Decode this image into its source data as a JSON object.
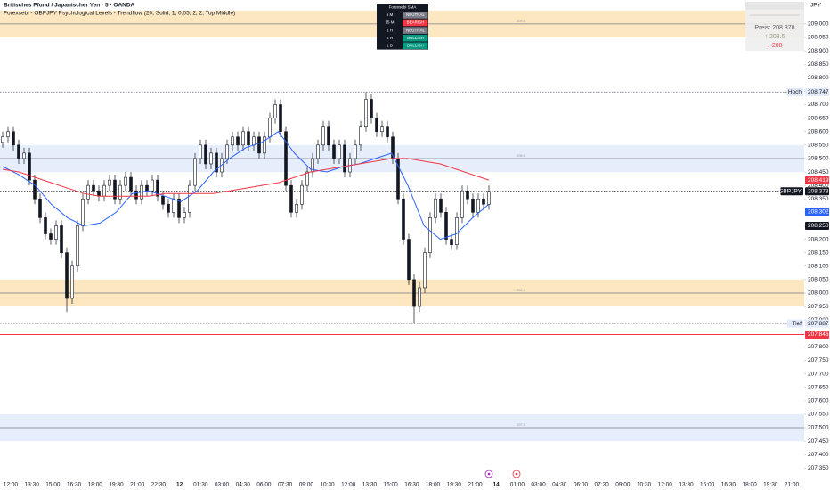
{
  "chart_data": {
    "type": "candlestick",
    "title": "Britisches Pfund / Japanischer Yen · 5 · OANDA",
    "subtitle": "Forexsebi - GBPJPY Psychological Levels - Trendflow (20, Solid, 1, 0.05, 2, 2, Top Middle)",
    "currency": "JPY",
    "ylim": [
      207.318,
      209.089
    ],
    "yticks": [
      {
        "value": 209.0,
        "label": "209,000"
      },
      {
        "value": 208.95,
        "label": "208,950"
      },
      {
        "value": 208.9,
        "label": "208,900"
      },
      {
        "value": 208.85,
        "label": "208,850"
      },
      {
        "value": 208.8,
        "label": "208,800"
      },
      {
        "value": 208.75,
        "label": "208,750"
      },
      {
        "value": 208.7,
        "label": "208,700"
      },
      {
        "value": 208.65,
        "label": "208,650"
      },
      {
        "value": 208.6,
        "label": "208,600"
      },
      {
        "value": 208.55,
        "label": "208,550"
      },
      {
        "value": 208.5,
        "label": "208,500"
      },
      {
        "value": 208.45,
        "label": "208,450"
      },
      {
        "value": 208.4,
        "label": "208,400"
      },
      {
        "value": 208.35,
        "label": "208,350"
      },
      {
        "value": 208.3,
        "label": "208,300"
      },
      {
        "value": 208.25,
        "label": "208,250"
      },
      {
        "value": 208.2,
        "label": "208,200"
      },
      {
        "value": 208.15,
        "label": "208,150"
      },
      {
        "value": 208.1,
        "label": "208,100"
      },
      {
        "value": 208.05,
        "label": "208,050"
      },
      {
        "value": 208.0,
        "label": "208,000"
      },
      {
        "value": 207.95,
        "label": "207,950"
      },
      {
        "value": 207.9,
        "label": "207,900"
      },
      {
        "value": 207.85,
        "label": "207,850"
      },
      {
        "value": 207.8,
        "label": "207,800"
      },
      {
        "value": 207.75,
        "label": "207,750"
      },
      {
        "value": 207.7,
        "label": "207,700"
      },
      {
        "value": 207.65,
        "label": "207,650"
      },
      {
        "value": 207.6,
        "label": "207,600"
      },
      {
        "value": 207.55,
        "label": "207,550"
      },
      {
        "value": 207.5,
        "label": "207,500"
      },
      {
        "value": 207.45,
        "label": "207,450"
      },
      {
        "value": 207.4,
        "label": "207,400"
      },
      {
        "value": 207.35,
        "label": "207,350"
      }
    ],
    "x_labels": [
      "12:00",
      "13:30",
      "15:00",
      "16:30",
      "18:00",
      "19:30",
      "21:00",
      "22:30",
      "12",
      "01:30",
      "03:00",
      "04:30",
      "06:00",
      "07:30",
      "09:00",
      "10:30",
      "12:00",
      "13:30",
      "15:00",
      "16:30",
      "18:00",
      "19:30",
      "21:00",
      "14",
      "01:00",
      "03:00",
      "04:30",
      "06:00",
      "07:30",
      "09:00",
      "10:30",
      "12:00",
      "13:30",
      "15:00",
      "16:30",
      "18:00",
      "19:30",
      "21:00"
    ],
    "day_labels": [
      "12",
      "14"
    ],
    "up_color": "#131722",
    "down_color": "#131722",
    "open": [
      208.56,
      208.58,
      208.6,
      208.55,
      208.5,
      208.52,
      208.42,
      208.35,
      208.28,
      208.22,
      208.2,
      208.25,
      208.15,
      207.98,
      208.1,
      208.25,
      208.35,
      208.4,
      208.38,
      208.36,
      208.4,
      208.42,
      208.35,
      208.4,
      208.43,
      208.38,
      208.35,
      208.4,
      208.38,
      208.42,
      208.36,
      208.33,
      208.3,
      208.35,
      208.28,
      208.3,
      208.4,
      208.5,
      208.55,
      208.48,
      208.52,
      208.45,
      208.5,
      208.55,
      208.58,
      208.55,
      208.6,
      208.55,
      208.58,
      208.52,
      208.58,
      208.65,
      208.7,
      208.6,
      208.4,
      208.3,
      208.33,
      208.4,
      208.45,
      208.5,
      208.55,
      208.62,
      208.55,
      208.5,
      208.55,
      208.45,
      208.5,
      208.55,
      208.62,
      208.72,
      208.65,
      208.6,
      208.62,
      208.58,
      208.5,
      208.35,
      208.2,
      208.05,
      207.95,
      208.02,
      208.15,
      208.28,
      208.35,
      208.3,
      208.2,
      208.18,
      208.28,
      208.38,
      208.35,
      208.3,
      208.35,
      208.33
    ],
    "high": [
      208.6,
      208.62,
      208.62,
      208.57,
      208.54,
      208.54,
      208.44,
      208.37,
      208.3,
      208.24,
      208.27,
      208.27,
      208.17,
      208.12,
      208.27,
      208.37,
      208.42,
      208.42,
      208.4,
      208.42,
      208.44,
      208.44,
      208.42,
      208.45,
      208.45,
      208.4,
      208.42,
      208.42,
      208.44,
      208.44,
      208.38,
      208.35,
      208.37,
      208.37,
      208.32,
      208.42,
      208.52,
      208.57,
      208.57,
      208.54,
      208.54,
      208.52,
      208.57,
      208.6,
      208.6,
      208.62,
      208.62,
      208.6,
      208.6,
      208.6,
      208.67,
      208.72,
      208.72,
      208.62,
      208.42,
      208.35,
      208.42,
      208.47,
      208.52,
      208.57,
      208.64,
      208.64,
      208.57,
      208.57,
      208.57,
      208.52,
      208.57,
      208.64,
      208.747,
      208.74,
      208.67,
      208.64,
      208.64,
      208.6,
      208.52,
      208.37,
      208.22,
      208.07,
      208.04,
      208.17,
      208.3,
      208.37,
      208.37,
      208.32,
      208.22,
      208.3,
      208.4,
      208.4,
      208.37,
      208.37,
      208.37,
      208.4
    ],
    "low": [
      208.54,
      208.56,
      208.53,
      208.48,
      208.48,
      208.4,
      208.33,
      208.26,
      208.2,
      208.18,
      208.18,
      208.13,
      207.93,
      207.96,
      208.08,
      208.23,
      208.33,
      208.36,
      208.34,
      208.34,
      208.38,
      208.33,
      208.33,
      208.38,
      208.36,
      208.33,
      208.33,
      208.36,
      208.36,
      208.34,
      208.31,
      208.28,
      208.28,
      208.26,
      208.26,
      208.28,
      208.38,
      208.48,
      208.46,
      208.46,
      208.43,
      208.43,
      208.48,
      208.53,
      208.53,
      208.53,
      208.53,
      208.53,
      208.5,
      208.5,
      208.56,
      208.63,
      208.58,
      208.38,
      208.28,
      208.28,
      208.31,
      208.38,
      208.43,
      208.48,
      208.53,
      208.53,
      208.48,
      208.48,
      208.43,
      208.43,
      208.48,
      208.53,
      208.6,
      208.63,
      208.58,
      208.58,
      208.56,
      208.48,
      208.33,
      208.18,
      208.03,
      207.887,
      207.93,
      208.0,
      208.13,
      208.26,
      208.28,
      208.18,
      208.16,
      208.16,
      208.26,
      208.33,
      208.28,
      208.28,
      208.31,
      208.31
    ],
    "close": [
      208.58,
      208.6,
      208.55,
      208.5,
      208.52,
      208.42,
      208.35,
      208.28,
      208.22,
      208.2,
      208.25,
      208.15,
      207.98,
      208.1,
      208.25,
      208.35,
      208.4,
      208.38,
      208.36,
      208.4,
      208.42,
      208.35,
      208.4,
      208.43,
      208.38,
      208.35,
      208.4,
      208.38,
      208.42,
      208.36,
      208.33,
      208.3,
      208.35,
      208.28,
      208.3,
      208.4,
      208.5,
      208.55,
      208.48,
      208.52,
      208.45,
      208.5,
      208.55,
      208.58,
      208.55,
      208.6,
      208.55,
      208.58,
      208.52,
      208.58,
      208.65,
      208.7,
      208.6,
      208.4,
      208.3,
      208.33,
      208.4,
      208.45,
      208.5,
      208.55,
      208.62,
      208.55,
      208.5,
      208.55,
      208.45,
      208.5,
      208.55,
      208.62,
      208.72,
      208.65,
      208.6,
      208.62,
      208.58,
      208.5,
      208.35,
      208.2,
      208.05,
      207.95,
      208.02,
      208.15,
      208.28,
      208.35,
      208.3,
      208.2,
      208.18,
      208.28,
      208.38,
      208.35,
      208.3,
      208.35,
      208.33,
      208.378
    ],
    "series": [
      {
        "color": "#2962ff",
        "values": [
          208.47,
          208.44,
          208.4,
          208.33,
          208.28,
          208.25,
          208.26,
          208.3,
          208.37,
          208.38,
          208.36,
          208.34,
          208.38,
          208.45,
          208.5,
          208.54,
          208.56,
          208.6,
          208.52,
          208.46,
          208.45,
          208.47,
          208.48,
          208.5,
          208.52,
          208.4,
          208.25,
          208.2,
          208.22,
          208.28,
          208.33
        ]
      },
      {
        "color": "#f23645",
        "values": [
          208.46,
          208.45,
          208.43,
          208.41,
          208.39,
          208.37,
          208.36,
          208.36,
          208.36,
          208.36,
          208.37,
          208.37,
          208.37,
          208.37,
          208.38,
          208.39,
          208.4,
          208.41,
          208.43,
          208.45,
          208.46,
          208.47,
          208.48,
          208.49,
          208.5,
          208.5,
          208.49,
          208.48,
          208.46,
          208.44,
          208.42
        ]
      }
    ],
    "zones": [
      {
        "top": 209.05,
        "bottom": 208.95,
        "level": 209.0,
        "label": "209.0",
        "color": "#fce3b6"
      },
      {
        "top": 208.55,
        "bottom": 208.45,
        "level": 208.5,
        "label": "208.5",
        "color": "#e3ebfa"
      },
      {
        "top": 208.05,
        "bottom": 207.95,
        "level": 208.0,
        "label": "208.0",
        "color": "#fce3b6"
      },
      {
        "top": 207.55,
        "bottom": 207.45,
        "level": 207.5,
        "label": "207.5",
        "color": "#e3ebfa"
      }
    ],
    "levels": [
      {
        "value": 208.747,
        "color": "#787b86",
        "dashed": true
      },
      {
        "value": 208.378,
        "color": "#131722",
        "dashed": true
      },
      {
        "value": 207.887,
        "color": "#787b86",
        "dashed": true
      },
      {
        "value": 207.846,
        "color": "#f23645",
        "dashed": false
      }
    ],
    "tags": [
      {
        "value": 208.747,
        "label": "208,747",
        "prefix": "Hoch",
        "bg": "#e3ebfa",
        "fg": "#131722"
      },
      {
        "value": 208.419,
        "label": "208,419",
        "bg": "#f23645",
        "fg": "#ffffff"
      },
      {
        "value": 208.378,
        "label": "208,378",
        "prefix": "GBPJPY",
        "bg": "#131722",
        "fg": "#ffffff"
      },
      {
        "value": 208.302,
        "label": "208,302",
        "bg": "#2962ff",
        "fg": "#ffffff"
      },
      {
        "value": 208.25,
        "label": "208,250",
        "bg": "#131722",
        "fg": "#ffffff"
      },
      {
        "value": 207.887,
        "label": "207,887",
        "prefix": "Tief",
        "bg": "#e3ebfa",
        "fg": "#131722"
      },
      {
        "value": 207.846,
        "label": "207,846",
        "bg": "#f23645",
        "fg": "#ffffff"
      }
    ],
    "sma_table": {
      "header": "Forexsebi SMA",
      "rows": [
        {
          "tf": "5 M",
          "signal": "NEUTRAL",
          "color": "#787b86"
        },
        {
          "tf": "15 M",
          "signal": "BEARISH",
          "color": "#f23645"
        },
        {
          "tf": "1 H",
          "signal": "NEUTRAL",
          "color": "#787b86"
        },
        {
          "tf": "4 H",
          "signal": "BULLISH",
          "color": "#089981"
        },
        {
          "tf": "1 D",
          "signal": "BULLISH",
          "color": "#089981"
        }
      ]
    },
    "info_box": {
      "price": "Preis: 208.378",
      "up": "↑ 208.5",
      "down": "↓ 208"
    }
  }
}
